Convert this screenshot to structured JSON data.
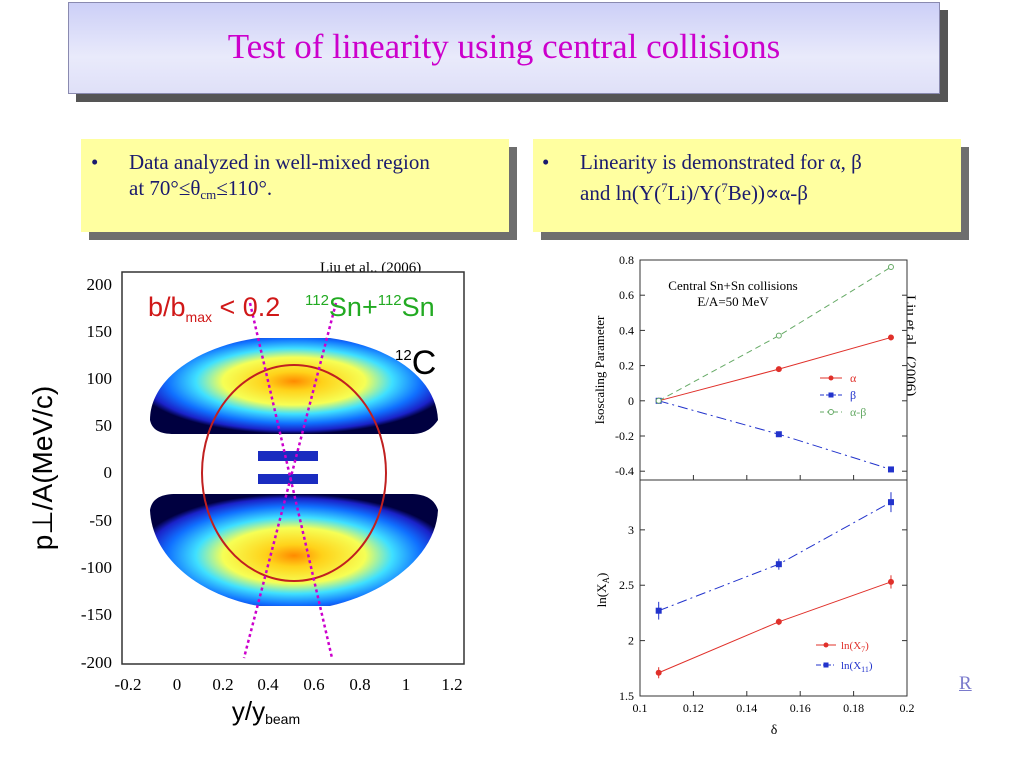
{
  "slide": {
    "title": "Test of linearity using central collisions"
  },
  "bullets": [
    {
      "marker": "•",
      "line1": "Data analyzed in well-mixed region",
      "line2_pre": "at 70°≤θ",
      "line2_sub": "cm",
      "line2_post": "≤110°."
    },
    {
      "marker": "•",
      "line1": "Linearity is demonstrated for α, β",
      "line2_a": "and ln(Y(",
      "line2_sup1": "7",
      "line2_b": "Li)/Y(",
      "line2_sup2": "7",
      "line2_c": "Be))∝α-β"
    }
  ],
  "citations": {
    "left": "Liu et al., (2006)",
    "right": "Liu et al., (2006)"
  },
  "link": {
    "label": "R"
  },
  "left_figure": {
    "yticks": [
      "200",
      "150",
      "100",
      "50",
      "0",
      "-50",
      "-100",
      "-150",
      "-200"
    ],
    "xticks": [
      "-0.2",
      "0",
      "0.2",
      "0.4",
      "0.6",
      "0.8",
      "1",
      "1.2"
    ],
    "ylabel": "p⊥/A(MeV/c)",
    "xlabel_main": "y/y",
    "xlabel_sub": "beam",
    "cut_label_pre": "b/b",
    "cut_label_sub": "max",
    "cut_label_post": " < 0.2",
    "system_sup1": "112",
    "system_a": "Sn+",
    "system_sup2": "112",
    "system_b": "Sn",
    "target_sup": "12",
    "target": "C"
  },
  "chart_data": [
    {
      "type": "scatter",
      "title": "Central Sn+Sn collisions",
      "subtitle": "E/A=50 MeV",
      "xlabel": "",
      "ylabel": "Isoscaling Parameter",
      "xlim": [
        0.1,
        0.2
      ],
      "ylim": [
        -0.45,
        0.8
      ],
      "yticks": [
        0.8,
        0.6,
        0.4,
        0.2,
        0,
        -0.2,
        -0.4
      ],
      "ytick_labels": [
        "0.8",
        "0.6",
        "0.4",
        "0.2",
        "0",
        "-0.2",
        "-0.4"
      ],
      "x": [
        0.107,
        0.152,
        0.194
      ],
      "series": [
        {
          "name": "α",
          "values": [
            0,
            0.18,
            0.36
          ],
          "color": "#e0302a",
          "marker": "circle",
          "dash": ""
        },
        {
          "name": "β",
          "values": [
            0,
            -0.19,
            -0.39
          ],
          "color": "#2233cc",
          "marker": "square",
          "dash": "10,4,2,4"
        },
        {
          "name": "α-β",
          "values": [
            0,
            0.37,
            0.76
          ],
          "color": "#66aa66",
          "marker": "circle-open",
          "dash": "6,4"
        }
      ]
    },
    {
      "type": "scatter",
      "title": "",
      "xlabel": "δ",
      "ylabel": "ln(X_A)",
      "xlim": [
        0.1,
        0.2
      ],
      "ylim": [
        1.5,
        3.45
      ],
      "xticks": [
        0.1,
        0.12,
        0.14,
        0.16,
        0.18,
        0.2
      ],
      "xtick_labels": [
        "0.1",
        "0.12",
        "0.14",
        "0.16",
        "0.18",
        "0.2"
      ],
      "yticks": [
        1.5,
        2,
        2.5,
        3
      ],
      "ytick_labels": [
        "1.5",
        "2",
        "2.5",
        "3"
      ],
      "x": [
        0.107,
        0.152,
        0.194
      ],
      "series": [
        {
          "name": "ln(X7)",
          "values": [
            1.71,
            2.17,
            2.53
          ],
          "errors": [
            0.05,
            0.03,
            0.06
          ],
          "color": "#e0302a",
          "marker": "circle",
          "dash": ""
        },
        {
          "name": "ln(X11)",
          "values": [
            2.27,
            2.69,
            3.25
          ],
          "errors": [
            0.08,
            0.05,
            0.09
          ],
          "color": "#2233cc",
          "marker": "square",
          "dash": "10,4,2,4"
        }
      ]
    }
  ]
}
